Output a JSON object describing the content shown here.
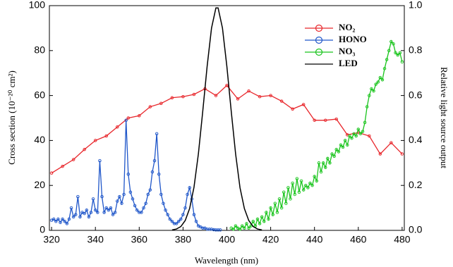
{
  "chart_data": {
    "type": "line",
    "xlabel": "Wavelength (nm)",
    "ylabel": "Cross section (10⁻²⁰ cm²)",
    "y2label": "Relative light source output",
    "xlim": [
      319,
      481
    ],
    "ylim": [
      0,
      100
    ],
    "y2lim": [
      0,
      1
    ],
    "xticks": [
      320,
      340,
      360,
      380,
      400,
      420,
      440,
      460,
      480
    ],
    "yticks": [
      0,
      20,
      40,
      60,
      80,
      100
    ],
    "y2ticks": [
      {
        "value": 0,
        "label": "0.0"
      },
      0.2,
      0.4,
      0.6,
      0.8,
      {
        "value": 1,
        "label": "1.0"
      }
    ],
    "legend": "upper right",
    "series": [
      {
        "name": "NO₂",
        "color": "#e8262b",
        "marker": true,
        "x": [
          320,
          325,
          330,
          335,
          340,
          345,
          350,
          355,
          360,
          365,
          370,
          375,
          380,
          385,
          390,
          395,
          400,
          405,
          410,
          415,
          420,
          425,
          430,
          435,
          440,
          445,
          450,
          455,
          460,
          465,
          470,
          475,
          480
        ],
        "values": [
          25.5,
          28.5,
          31.5,
          36,
          40,
          42,
          46,
          50,
          51,
          55,
          56.5,
          59,
          59.5,
          60.5,
          63,
          60,
          64.5,
          58.5,
          62,
          59.5,
          60,
          57.5,
          54,
          56,
          49,
          49,
          49.5,
          42.5,
          43.5,
          42,
          34,
          39,
          34
        ]
      },
      {
        "name": "HONO",
        "color": "#1f56c9",
        "marker": true,
        "x": [
          320,
          321,
          322,
          323,
          324,
          325,
          326,
          327,
          328,
          329,
          330,
          331,
          332,
          333,
          334,
          335,
          336,
          337,
          338,
          339,
          340,
          341,
          342,
          343,
          344,
          345,
          346,
          347,
          348,
          349,
          350,
          351,
          352,
          353,
          354,
          355,
          356,
          357,
          358,
          359,
          360,
          361,
          362,
          363,
          364,
          365,
          366,
          367,
          368,
          369,
          370,
          371,
          372,
          373,
          374,
          375,
          376,
          377,
          378,
          379,
          380,
          381,
          382,
          383,
          384,
          385,
          386,
          387,
          388,
          389,
          390,
          391,
          392,
          393,
          394,
          395,
          396,
          397
        ],
        "values": [
          4.5,
          5,
          4,
          5,
          3.5,
          5,
          4,
          3,
          5,
          10,
          6,
          7,
          15,
          6,
          8,
          7.5,
          9,
          6,
          8,
          14,
          9,
          8,
          31,
          15,
          8,
          10,
          9,
          10,
          7,
          8,
          13,
          15,
          12,
          16,
          49,
          25,
          17,
          14,
          11,
          9,
          8,
          8,
          10,
          12,
          16,
          18,
          26,
          31,
          43,
          25,
          16,
          12,
          9,
          7,
          5,
          4,
          3,
          3,
          4,
          5,
          7,
          10,
          16,
          19,
          14,
          7,
          4,
          2,
          1.5,
          1,
          1,
          0.5,
          0.5,
          0.5,
          0.3,
          0.2,
          0.2,
          0.2
        ]
      },
      {
        "name": "NO₃",
        "color": "#19c41c",
        "marker": true,
        "x": [
          402,
          403,
          404,
          405,
          406,
          407,
          408,
          409,
          410,
          411,
          412,
          413,
          414,
          415,
          416,
          417,
          418,
          419,
          420,
          421,
          422,
          423,
          424,
          425,
          426,
          427,
          428,
          429,
          430,
          431,
          432,
          433,
          434,
          435,
          436,
          437,
          438,
          439,
          440,
          441,
          442,
          443,
          444,
          445,
          446,
          447,
          448,
          449,
          450,
          451,
          452,
          453,
          454,
          455,
          456,
          457,
          458,
          459,
          460,
          461,
          462,
          463,
          464,
          465,
          466,
          467,
          468,
          469,
          470,
          471,
          472,
          473,
          474,
          475,
          476,
          477,
          478,
          479,
          480
        ],
        "values": [
          1,
          0.5,
          2,
          1,
          0.5,
          2,
          1,
          3,
          1,
          2,
          4,
          2,
          5,
          3,
          6,
          4,
          8,
          5,
          10,
          7,
          12,
          8,
          14,
          10,
          17,
          12,
          19,
          14,
          21,
          16,
          23,
          17,
          22,
          18,
          20,
          19,
          21,
          20,
          24,
          22,
          30,
          26,
          30,
          28,
          32,
          30,
          34,
          33,
          36,
          35,
          38,
          37,
          40,
          38,
          42,
          41,
          43,
          42,
          45,
          43,
          44,
          48,
          55,
          60,
          63,
          62,
          65,
          66,
          68,
          67,
          72,
          76,
          80,
          84,
          83,
          79,
          78,
          79,
          75
        ]
      },
      {
        "name": "LED",
        "color": "#000000",
        "marker": false,
        "axis": "y2",
        "x": [
          375,
          377,
          379,
          381,
          383,
          385,
          387,
          389,
          391,
          393,
          395,
          396,
          398,
          400,
          402,
          404,
          406,
          408,
          410,
          412,
          414,
          416
        ],
        "values": [
          0.002,
          0.006,
          0.017,
          0.044,
          0.097,
          0.192,
          0.34,
          0.53,
          0.73,
          0.9,
          0.99,
          0.99,
          0.9,
          0.73,
          0.53,
          0.34,
          0.19,
          0.097,
          0.044,
          0.017,
          0.006,
          0.002
        ]
      }
    ]
  }
}
